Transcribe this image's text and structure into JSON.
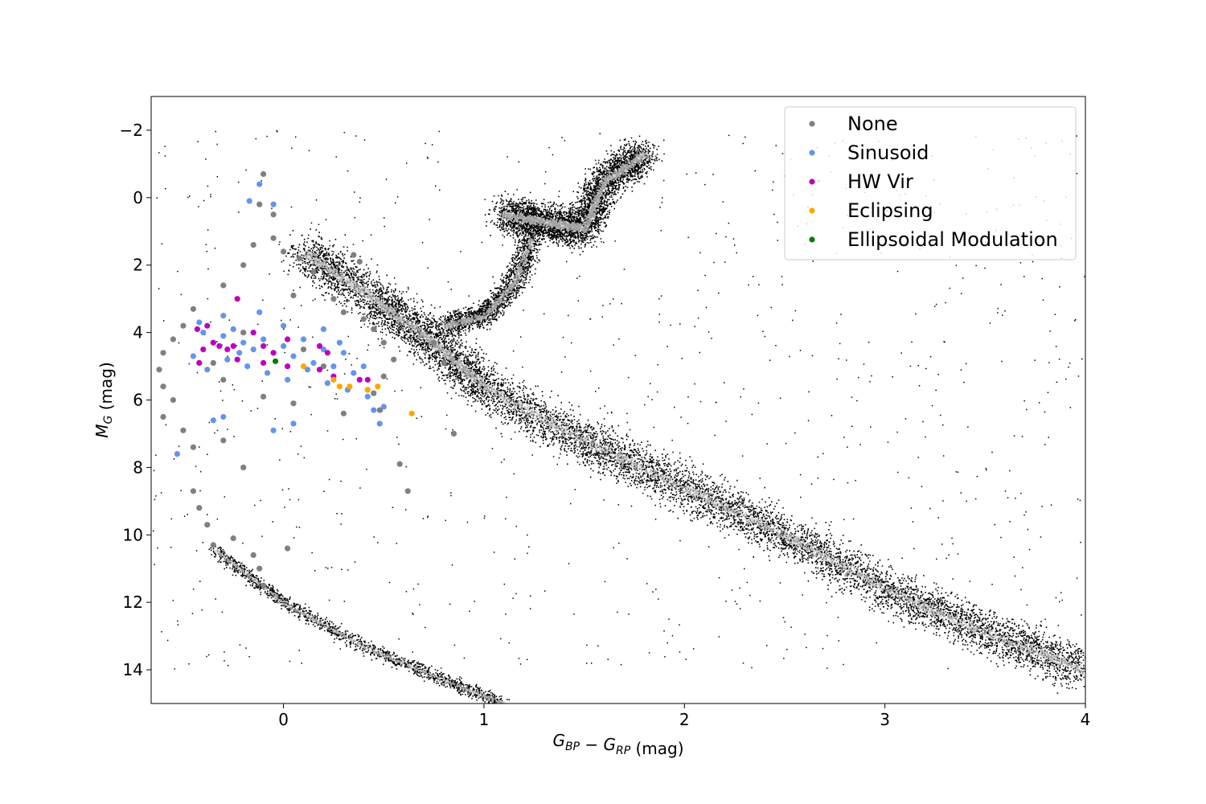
{
  "chart_data": {
    "type": "scatter",
    "xlabel": "G_BP − G_RP (mag)",
    "ylabel": "M_G (mag)",
    "xlim": [
      -0.66,
      4.0
    ],
    "ylim": [
      15.0,
      -3.0
    ],
    "y_inverted": true,
    "xticks": [
      0,
      1,
      2,
      3,
      4
    ],
    "xtick_labels": [
      "0",
      "1",
      "2",
      "3",
      "4"
    ],
    "yticks": [
      -2,
      0,
      2,
      4,
      6,
      8,
      10,
      12,
      14
    ],
    "ytick_labels": [
      "−2",
      "0",
      "2",
      "4",
      "6",
      "8",
      "10",
      "12",
      "14"
    ],
    "grid": false,
    "legend_position": "top-right",
    "background": {
      "kind": "density_hexbin",
      "colormap": "grayscale (black sparse, white dense)",
      "features": [
        {
          "name": "main sequence",
          "path": [
            [
              0.1,
              1.6
            ],
            [
              0.45,
              3.0
            ],
            [
              0.75,
              4.3
            ],
            [
              1.0,
              5.6
            ],
            [
              1.5,
              7.2
            ],
            [
              2.0,
              8.6
            ],
            [
              2.5,
              10.0
            ],
            [
              3.0,
              11.6
            ],
            [
              3.5,
              12.9
            ],
            [
              4.0,
              14.0
            ]
          ]
        },
        {
          "name": "subgiant branch",
          "path": [
            [
              0.8,
              3.8
            ],
            [
              1.0,
              3.5
            ],
            [
              1.15,
              2.5
            ],
            [
              1.25,
              1.0
            ]
          ]
        },
        {
          "name": "red giant branch / clump",
          "path": [
            [
              1.1,
              0.5
            ],
            [
              1.3,
              0.7
            ],
            [
              1.5,
              0.9
            ],
            [
              1.6,
              -0.5
            ],
            [
              1.8,
              -1.3
            ]
          ]
        },
        {
          "name": "white dwarf sequence",
          "path": [
            [
              -0.35,
              10.4
            ],
            [
              0.0,
              12.0
            ],
            [
              0.4,
              13.3
            ],
            [
              0.8,
              14.3
            ],
            [
              1.1,
              15.0
            ]
          ]
        }
      ]
    },
    "series": [
      {
        "name": "None",
        "color": "#808080",
        "points": [
          [
            -0.1,
            -0.7
          ],
          [
            -0.12,
            0.2
          ],
          [
            -0.05,
            0.5
          ],
          [
            -0.15,
            1.4
          ],
          [
            0.0,
            1.6
          ],
          [
            0.08,
            1.8
          ],
          [
            -0.2,
            2.0
          ],
          [
            0.15,
            2.2
          ],
          [
            -0.3,
            2.6
          ],
          [
            0.05,
            2.9
          ],
          [
            0.25,
            3.0
          ],
          [
            -0.45,
            3.3
          ],
          [
            0.3,
            3.4
          ],
          [
            0.4,
            3.6
          ],
          [
            -0.5,
            3.8
          ],
          [
            0.45,
            3.9
          ],
          [
            -0.55,
            4.2
          ],
          [
            0.5,
            4.3
          ],
          [
            -0.6,
            4.6
          ],
          [
            0.55,
            4.8
          ],
          [
            -0.62,
            5.1
          ],
          [
            0.5,
            5.3
          ],
          [
            -0.6,
            5.6
          ],
          [
            0.45,
            5.8
          ],
          [
            -0.55,
            6.0
          ],
          [
            0.48,
            6.3
          ],
          [
            -0.6,
            6.5
          ],
          [
            -0.5,
            6.9
          ],
          [
            -0.3,
            7.2
          ],
          [
            -0.45,
            7.4
          ],
          [
            -0.2,
            8.0
          ],
          [
            -0.45,
            8.7
          ],
          [
            -0.42,
            9.2
          ],
          [
            -0.38,
            9.7
          ],
          [
            -0.25,
            10.1
          ],
          [
            -0.35,
            10.3
          ],
          [
            0.02,
            10.4
          ],
          [
            -0.15,
            10.6
          ],
          [
            -0.12,
            11.0
          ],
          [
            -0.1,
            11.5
          ],
          [
            0.58,
            7.9
          ],
          [
            0.62,
            8.7
          ],
          [
            0.75,
            4.3
          ],
          [
            0.8,
            4.9
          ],
          [
            0.85,
            7.0
          ],
          [
            0.35,
            1.7
          ],
          [
            0.38,
            1.9
          ],
          [
            -0.05,
            1.2
          ],
          [
            -0.2,
            4.0
          ],
          [
            0.1,
            4.5
          ],
          [
            0.2,
            5.0
          ],
          [
            -0.3,
            5.4
          ],
          [
            0.05,
            6.1
          ],
          [
            0.3,
            6.4
          ],
          [
            -0.1,
            5.9
          ],
          [
            -0.35,
            4.9
          ]
        ]
      },
      {
        "name": "Sinusoid",
        "color": "#6495ed",
        "points": [
          [
            -0.12,
            -0.4
          ],
          [
            -0.17,
            0.1
          ],
          [
            -0.05,
            0.2
          ],
          [
            -0.4,
            4.0
          ],
          [
            -0.35,
            4.3
          ],
          [
            -0.3,
            4.1
          ],
          [
            -0.25,
            3.9
          ],
          [
            -0.2,
            4.3
          ],
          [
            -0.15,
            4.5
          ],
          [
            -0.1,
            4.2
          ],
          [
            -0.05,
            4.6
          ],
          [
            0.0,
            4.4
          ],
          [
            0.05,
            4.7
          ],
          [
            0.1,
            4.2
          ],
          [
            0.15,
            4.9
          ],
          [
            0.2,
            4.5
          ],
          [
            0.25,
            5.0
          ],
          [
            0.3,
            4.6
          ],
          [
            0.35,
            5.2
          ],
          [
            0.4,
            5.0
          ],
          [
            -0.45,
            4.7
          ],
          [
            -0.38,
            5.1
          ],
          [
            -0.28,
            4.8
          ],
          [
            -0.18,
            5.0
          ],
          [
            -0.08,
            5.2
          ],
          [
            0.02,
            5.4
          ],
          [
            0.12,
            5.1
          ],
          [
            0.22,
            5.5
          ],
          [
            0.32,
            5.7
          ],
          [
            0.42,
            5.9
          ],
          [
            0.45,
            6.3
          ],
          [
            0.48,
            6.7
          ],
          [
            -0.35,
            6.6
          ],
          [
            -0.3,
            6.5
          ],
          [
            -0.05,
            6.9
          ],
          [
            0.05,
            6.7
          ],
          [
            -0.53,
            7.6
          ],
          [
            -0.42,
            3.7
          ],
          [
            -0.3,
            3.5
          ],
          [
            0.0,
            3.8
          ],
          [
            0.2,
            3.9
          ],
          [
            0.5,
            6.2
          ],
          [
            -0.22,
            4.6
          ],
          [
            0.28,
            4.3
          ],
          [
            -0.12,
            3.4
          ]
        ]
      },
      {
        "name": "HW Vir",
        "color": "#bf00bf",
        "points": [
          [
            -0.23,
            3.0
          ],
          [
            -0.43,
            3.9
          ],
          [
            -0.38,
            3.8
          ],
          [
            -0.35,
            4.3
          ],
          [
            -0.4,
            4.5
          ],
          [
            -0.32,
            4.4
          ],
          [
            -0.28,
            4.5
          ],
          [
            -0.25,
            4.4
          ],
          [
            -0.15,
            4.0
          ],
          [
            -0.1,
            4.4
          ],
          [
            -0.05,
            4.6
          ],
          [
            0.02,
            4.2
          ],
          [
            0.18,
            4.4
          ],
          [
            0.22,
            4.6
          ],
          [
            -0.23,
            4.8
          ],
          [
            -0.1,
            4.9
          ],
          [
            0.02,
            5.0
          ],
          [
            0.18,
            5.1
          ],
          [
            0.25,
            5.3
          ],
          [
            0.38,
            5.4
          ],
          [
            0.42,
            5.4
          ],
          [
            -0.42,
            4.9
          ]
        ]
      },
      {
        "name": "Eclipsing",
        "color": "#ffa500",
        "points": [
          [
            0.1,
            5.0
          ],
          [
            0.25,
            5.4
          ],
          [
            0.28,
            5.6
          ],
          [
            0.33,
            5.6
          ],
          [
            0.42,
            5.7
          ],
          [
            0.47,
            5.6
          ],
          [
            0.64,
            6.4
          ]
        ]
      },
      {
        "name": "Ellipsoidal Modulation",
        "color": "#008000",
        "points": [
          [
            -0.04,
            4.85
          ]
        ]
      }
    ]
  }
}
